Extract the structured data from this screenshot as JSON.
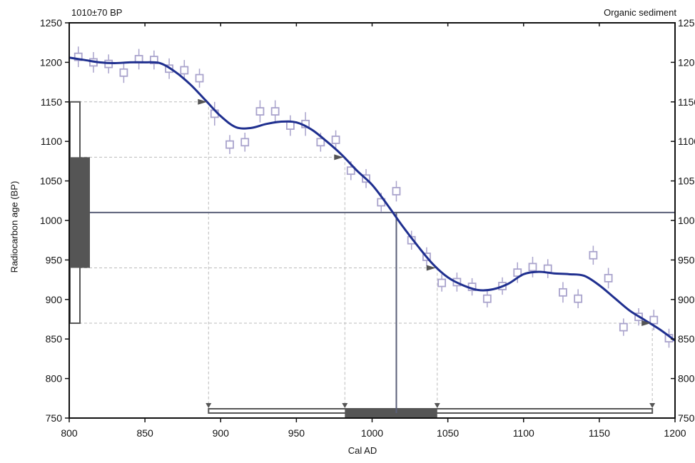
{
  "header": {
    "left": "1010±70 BP",
    "right": "Organic sediment"
  },
  "chart_data": {
    "type": "line",
    "title": "",
    "xlabel": "Cal AD",
    "ylabel": "Radiocarbon age (BP)",
    "xlim": [
      800,
      1200
    ],
    "ylim": [
      750,
      1250
    ],
    "x_ticks": [
      800,
      850,
      900,
      950,
      1000,
      1050,
      1100,
      1150,
      1200
    ],
    "y_ticks": [
      750,
      800,
      850,
      900,
      950,
      1000,
      1050,
      1100,
      1150,
      1200,
      1250
    ],
    "grid": false,
    "colors": {
      "curve": "#1f2f8f",
      "markers": "#a9a3cc",
      "bars": "#555555",
      "guides": "#bbbbbb"
    },
    "calibration_curve": [
      [
        800,
        1206
      ],
      [
        810,
        1203
      ],
      [
        820,
        1200
      ],
      [
        830,
        1199
      ],
      [
        840,
        1200
      ],
      [
        850,
        1200
      ],
      [
        860,
        1199
      ],
      [
        870,
        1188
      ],
      [
        880,
        1172
      ],
      [
        890,
        1152
      ],
      [
        900,
        1132
      ],
      [
        910,
        1118
      ],
      [
        920,
        1117
      ],
      [
        930,
        1122
      ],
      [
        940,
        1125
      ],
      [
        950,
        1124
      ],
      [
        960,
        1115
      ],
      [
        970,
        1100
      ],
      [
        980,
        1083
      ],
      [
        990,
        1063
      ],
      [
        1000,
        1045
      ],
      [
        1010,
        1020
      ],
      [
        1020,
        993
      ],
      [
        1030,
        968
      ],
      [
        1040,
        945
      ],
      [
        1050,
        928
      ],
      [
        1060,
        918
      ],
      [
        1070,
        912
      ],
      [
        1080,
        913
      ],
      [
        1090,
        920
      ],
      [
        1100,
        932
      ],
      [
        1110,
        935
      ],
      [
        1120,
        933
      ],
      [
        1130,
        932
      ],
      [
        1140,
        930
      ],
      [
        1150,
        918
      ],
      [
        1160,
        902
      ],
      [
        1170,
        886
      ],
      [
        1180,
        874
      ],
      [
        1190,
        862
      ],
      [
        1200,
        848
      ]
    ],
    "data_points": [
      {
        "x": 806,
        "y": 1207,
        "err": 13
      },
      {
        "x": 816,
        "y": 1200,
        "err": 13
      },
      {
        "x": 826,
        "y": 1198,
        "err": 12
      },
      {
        "x": 836,
        "y": 1187,
        "err": 13
      },
      {
        "x": 846,
        "y": 1204,
        "err": 13
      },
      {
        "x": 856,
        "y": 1203,
        "err": 12
      },
      {
        "x": 866,
        "y": 1192,
        "err": 13
      },
      {
        "x": 876,
        "y": 1190,
        "err": 13
      },
      {
        "x": 886,
        "y": 1180,
        "err": 12
      },
      {
        "x": 896,
        "y": 1135,
        "err": 15
      },
      {
        "x": 906,
        "y": 1096,
        "err": 12
      },
      {
        "x": 916,
        "y": 1099,
        "err": 12
      },
      {
        "x": 926,
        "y": 1138,
        "err": 14
      },
      {
        "x": 936,
        "y": 1138,
        "err": 14
      },
      {
        "x": 946,
        "y": 1120,
        "err": 13
      },
      {
        "x": 956,
        "y": 1122,
        "err": 15
      },
      {
        "x": 966,
        "y": 1099,
        "err": 12
      },
      {
        "x": 976,
        "y": 1102,
        "err": 12
      },
      {
        "x": 986,
        "y": 1063,
        "err": 12
      },
      {
        "x": 996,
        "y": 1053,
        "err": 12
      },
      {
        "x": 1006,
        "y": 1023,
        "err": 12
      },
      {
        "x": 1016,
        "y": 1037,
        "err": 13
      },
      {
        "x": 1026,
        "y": 975,
        "err": 12
      },
      {
        "x": 1036,
        "y": 954,
        "err": 12
      },
      {
        "x": 1046,
        "y": 921,
        "err": 11
      },
      {
        "x": 1056,
        "y": 922,
        "err": 12
      },
      {
        "x": 1066,
        "y": 916,
        "err": 11
      },
      {
        "x": 1076,
        "y": 901,
        "err": 11
      },
      {
        "x": 1086,
        "y": 917,
        "err": 11
      },
      {
        "x": 1096,
        "y": 934,
        "err": 13
      },
      {
        "x": 1106,
        "y": 941,
        "err": 13
      },
      {
        "x": 1116,
        "y": 939,
        "err": 12
      },
      {
        "x": 1126,
        "y": 909,
        "err": 13
      },
      {
        "x": 1136,
        "y": 901,
        "err": 12
      },
      {
        "x": 1146,
        "y": 956,
        "err": 12
      },
      {
        "x": 1156,
        "y": 927,
        "err": 13
      },
      {
        "x": 1166,
        "y": 865,
        "err": 11
      },
      {
        "x": 1176,
        "y": 878,
        "err": 11
      },
      {
        "x": 1186,
        "y": 874,
        "err": 13
      },
      {
        "x": 1196,
        "y": 851,
        "err": 12
      }
    ],
    "measurement": {
      "age": 1010,
      "sigma1": [
        940,
        1080
      ],
      "sigma2": [
        870,
        1150
      ]
    },
    "calibrated_ranges": {
      "sigma2": [
        892,
        1185
      ],
      "sigma1": [
        982,
        1043
      ],
      "intercept": 1016
    },
    "range_markers": [
      {
        "x": 892,
        "y": 1150
      },
      {
        "x": 982,
        "y": 1080
      },
      {
        "x": 1043,
        "y": 940
      },
      {
        "x": 1185,
        "y": 870
      }
    ]
  }
}
